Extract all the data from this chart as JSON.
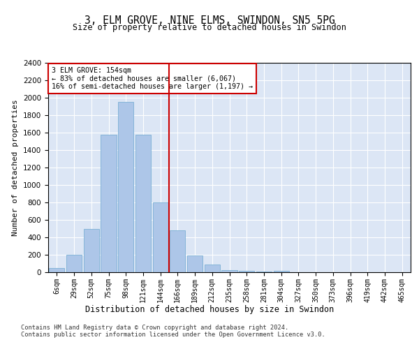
{
  "title": "3, ELM GROVE, NINE ELMS, SWINDON, SN5 5PG",
  "subtitle": "Size of property relative to detached houses in Swindon",
  "xlabel": "Distribution of detached houses by size in Swindon",
  "ylabel": "Number of detached properties",
  "footnote1": "Contains HM Land Registry data © Crown copyright and database right 2024.",
  "footnote2": "Contains public sector information licensed under the Open Government Licence v3.0.",
  "annotation_line1": "3 ELM GROVE: 154sqm",
  "annotation_line2": "← 83% of detached houses are smaller (6,067)",
  "annotation_line3": "16% of semi-detached houses are larger (1,197) →",
  "bar_categories": [
    "6sqm",
    "29sqm",
    "52sqm",
    "75sqm",
    "98sqm",
    "121sqm",
    "144sqm",
    "166sqm",
    "189sqm",
    "212sqm",
    "235sqm",
    "258sqm",
    "281sqm",
    "304sqm",
    "327sqm",
    "350sqm",
    "373sqm",
    "396sqm",
    "419sqm",
    "442sqm",
    "465sqm"
  ],
  "bar_values": [
    50,
    200,
    500,
    1580,
    1950,
    1580,
    800,
    480,
    195,
    90,
    25,
    20,
    5,
    20,
    0,
    0,
    0,
    0,
    0,
    0,
    0
  ],
  "bar_color": "#adc6e8",
  "bar_edge_color": "#7aafd4",
  "vline_color": "#cc0000",
  "vline_x_pos": 6.5,
  "annotation_box_color": "#cc0000",
  "background_color": "#dce6f5",
  "ylim": [
    0,
    2400
  ],
  "yticks": [
    0,
    200,
    400,
    600,
    800,
    1000,
    1200,
    1400,
    1600,
    1800,
    2000,
    2200,
    2400
  ]
}
